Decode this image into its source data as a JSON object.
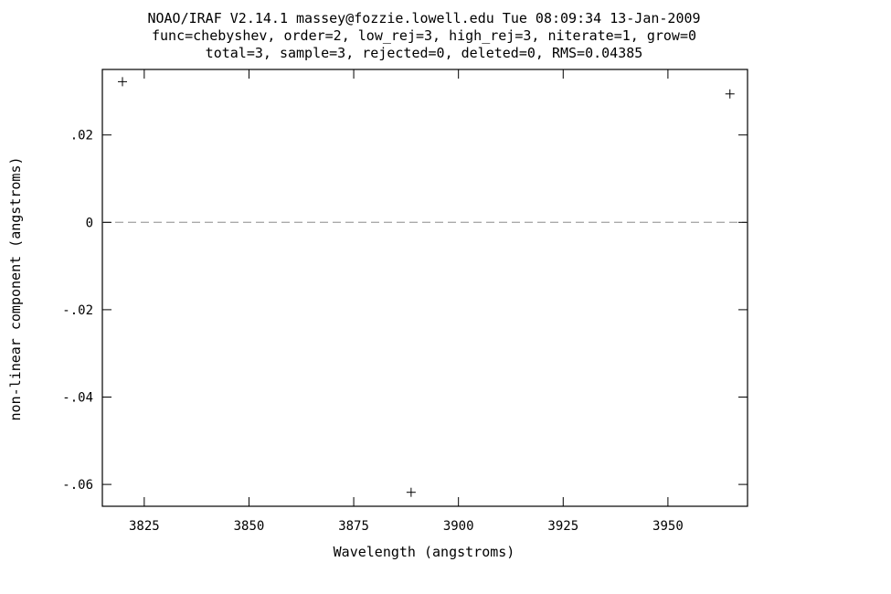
{
  "header": {
    "line1": "NOAO/IRAF V2.14.1 massey@fozzie.lowell.edu Tue 08:09:34 13-Jan-2009",
    "line2": "func=chebyshev, order=2, low_rej=3, high_rej=3, niterate=1, grow=0",
    "line3": "total=3, sample=3, rejected=0, deleted=0, RMS=0.04385"
  },
  "chart_data": {
    "type": "scatter",
    "title": "",
    "xlabel": "Wavelength (angstroms)",
    "ylabel": "non-linear component (angstroms)",
    "xlim": [
      3815,
      3969
    ],
    "ylim": [
      -0.065,
      0.035
    ],
    "x_ticks": [
      3825,
      3850,
      3875,
      3900,
      3925,
      3950
    ],
    "x_tick_labels": [
      "3825",
      "3850",
      "3875",
      "3900",
      "3925",
      "3950"
    ],
    "y_ticks": [
      0.02,
      0,
      -0.02,
      -0.04,
      -0.06
    ],
    "y_tick_labels": [
      ".02",
      "0",
      "-.02",
      "-.04",
      "-.06"
    ],
    "grid": false,
    "marker": "+",
    "reference_line": {
      "y": 0,
      "style": "dashed",
      "color": "#aaaaaa"
    },
    "series": [
      {
        "x": [
          3819.8,
          3888.7,
          3964.8
        ],
        "y": [
          0.0322,
          -0.0618,
          0.0294
        ]
      }
    ]
  }
}
